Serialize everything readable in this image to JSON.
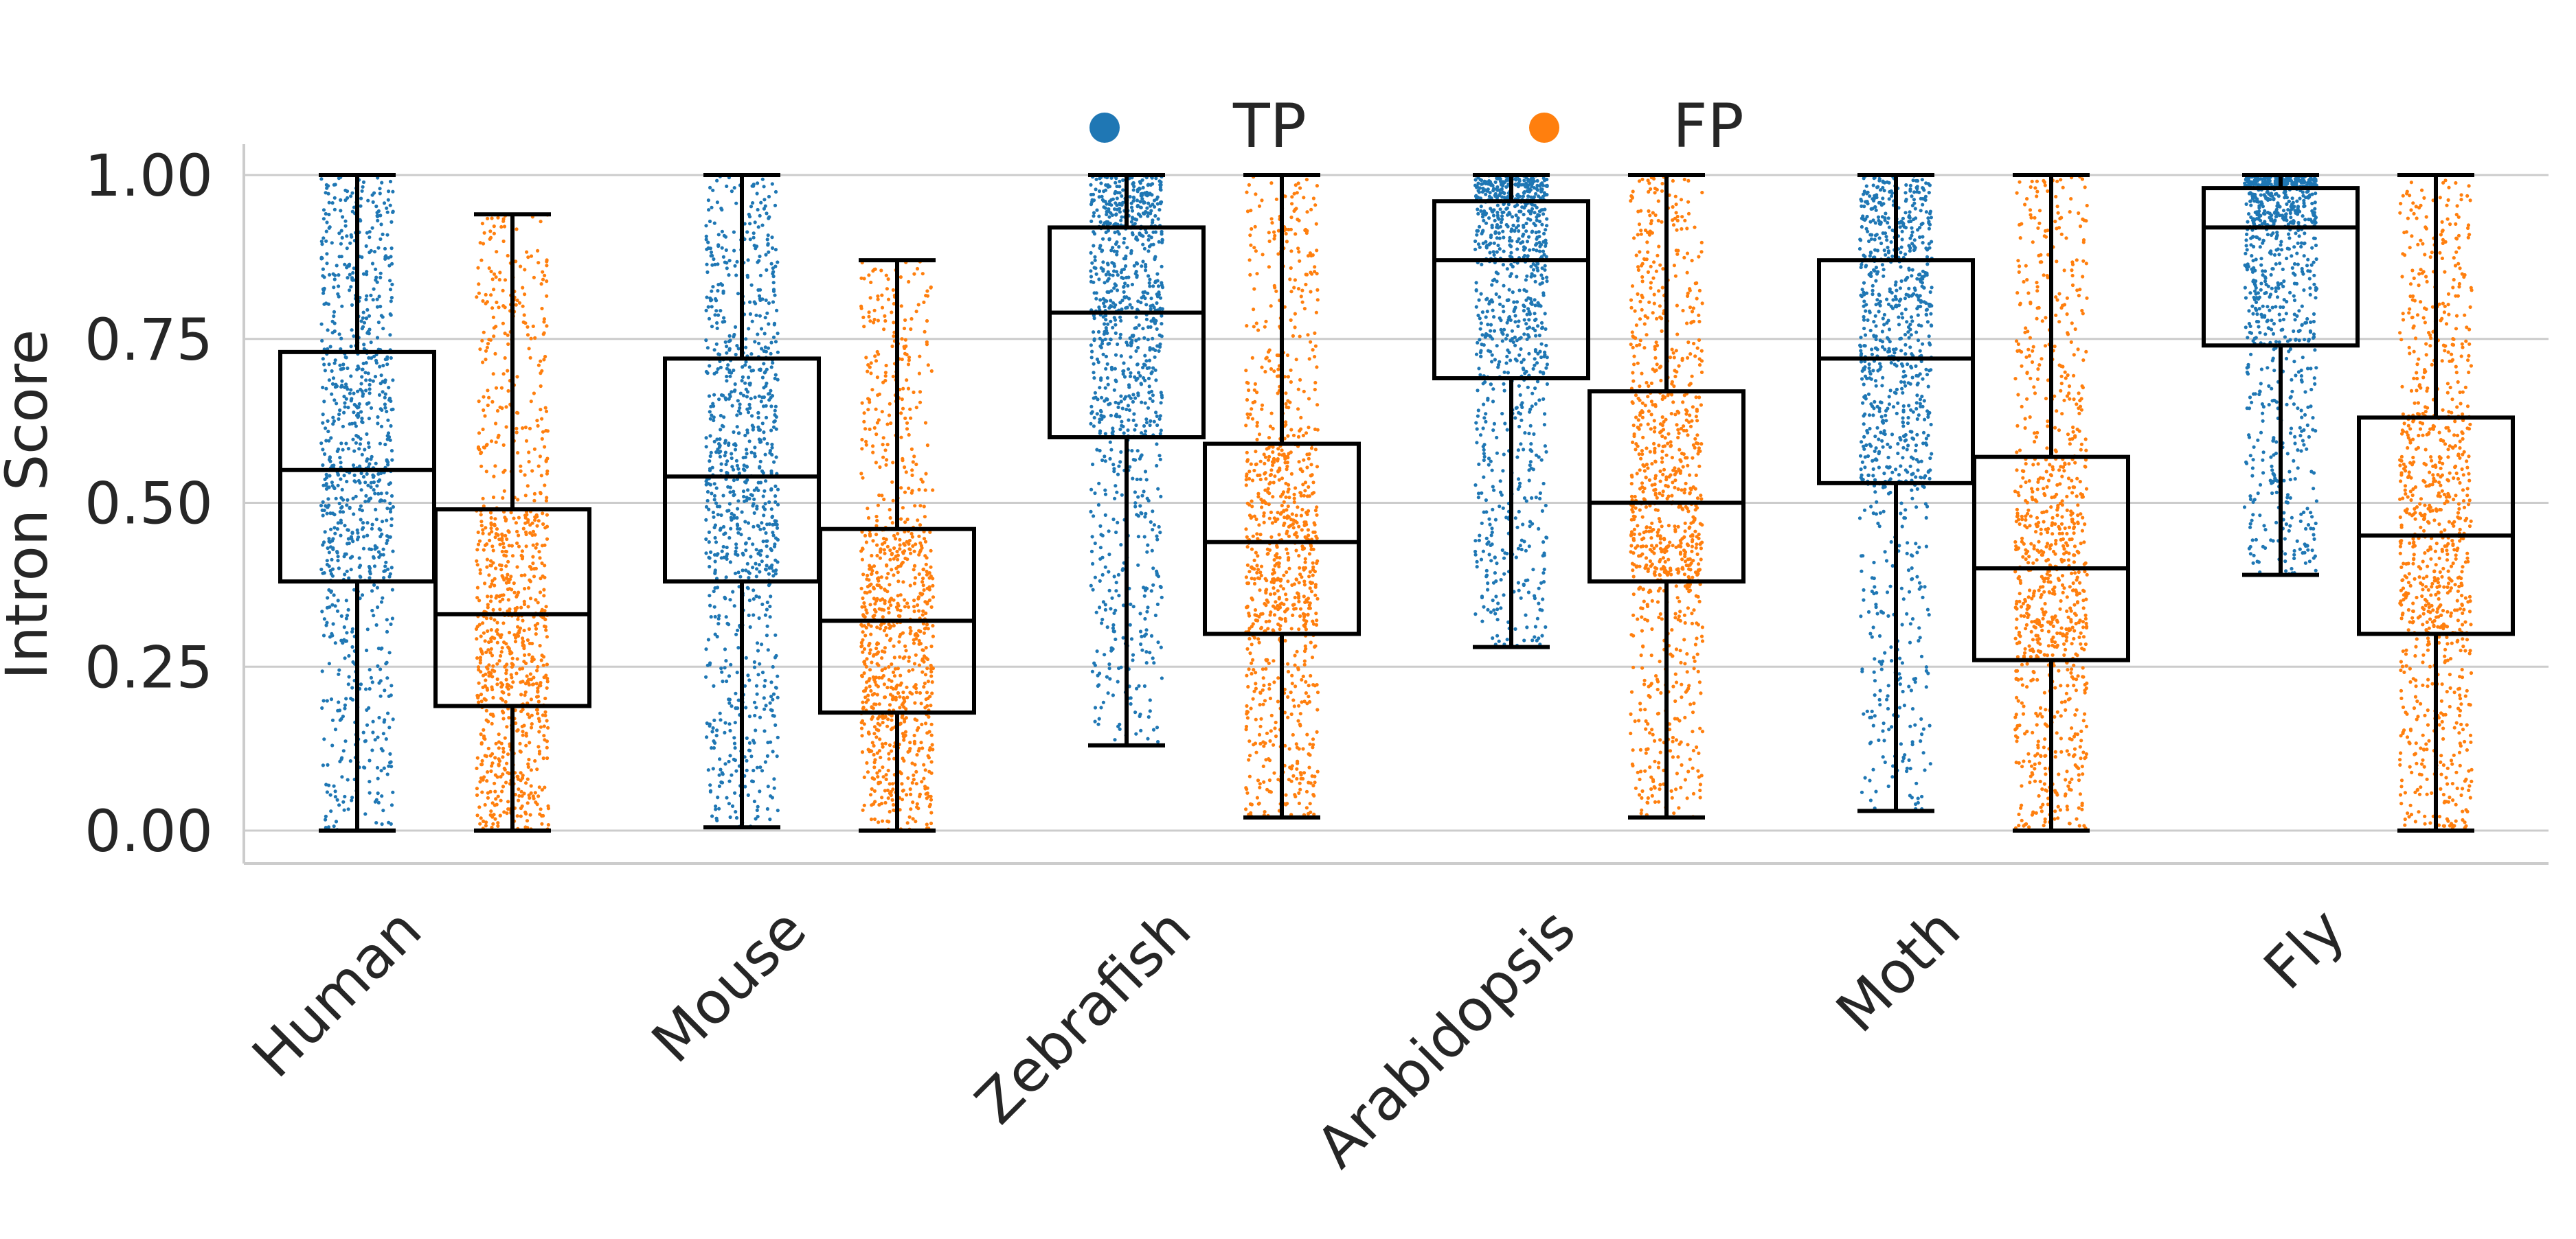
{
  "chart_data": {
    "type": "box",
    "ylabel": "Intron Score",
    "xlabel": "",
    "ylim": [
      -0.05,
      1.05
    ],
    "yticks": [
      "0.00",
      "0.25",
      "0.50",
      "0.75",
      "1.00"
    ],
    "categories": [
      "Human",
      "Mouse",
      "Zebrafish",
      "Arabidopsis",
      "Moth",
      "Fly"
    ],
    "grid": "horizontal",
    "legend": {
      "placement": "top-center",
      "entries": [
        "TP",
        "FP"
      ]
    },
    "series": [
      {
        "name": "TP",
        "color": "#1f77b4",
        "boxes": [
          {
            "whisker_low": 0.0,
            "q1": 0.38,
            "median": 0.55,
            "q3": 0.73,
            "whisker_high": 1.0
          },
          {
            "whisker_low": 0.005,
            "q1": 0.38,
            "median": 0.54,
            "q3": 0.72,
            "whisker_high": 1.0
          },
          {
            "whisker_low": 0.13,
            "q1": 0.6,
            "median": 0.79,
            "q3": 0.92,
            "whisker_high": 1.0
          },
          {
            "whisker_low": 0.28,
            "q1": 0.69,
            "median": 0.87,
            "q3": 0.96,
            "whisker_high": 1.0
          },
          {
            "whisker_low": 0.03,
            "q1": 0.53,
            "median": 0.72,
            "q3": 0.87,
            "whisker_high": 1.0
          },
          {
            "whisker_low": 0.39,
            "q1": 0.74,
            "median": 0.92,
            "q3": 0.98,
            "whisker_high": 1.0
          }
        ]
      },
      {
        "name": "FP",
        "color": "#ff7f0e",
        "boxes": [
          {
            "whisker_low": 0.0,
            "q1": 0.19,
            "median": 0.33,
            "q3": 0.49,
            "whisker_high": 0.94
          },
          {
            "whisker_low": 0.0,
            "q1": 0.18,
            "median": 0.32,
            "q3": 0.46,
            "whisker_high": 0.87
          },
          {
            "whisker_low": 0.02,
            "q1": 0.3,
            "median": 0.44,
            "q3": 0.59,
            "whisker_high": 1.0
          },
          {
            "whisker_low": 0.02,
            "q1": 0.38,
            "median": 0.5,
            "q3": 0.67,
            "whisker_high": 1.0
          },
          {
            "whisker_low": 0.0,
            "q1": 0.26,
            "median": 0.4,
            "q3": 0.57,
            "whisker_high": 1.0
          },
          {
            "whisker_low": 0.0,
            "q1": 0.3,
            "median": 0.45,
            "q3": 0.63,
            "whisker_high": 1.0
          }
        ]
      }
    ]
  }
}
